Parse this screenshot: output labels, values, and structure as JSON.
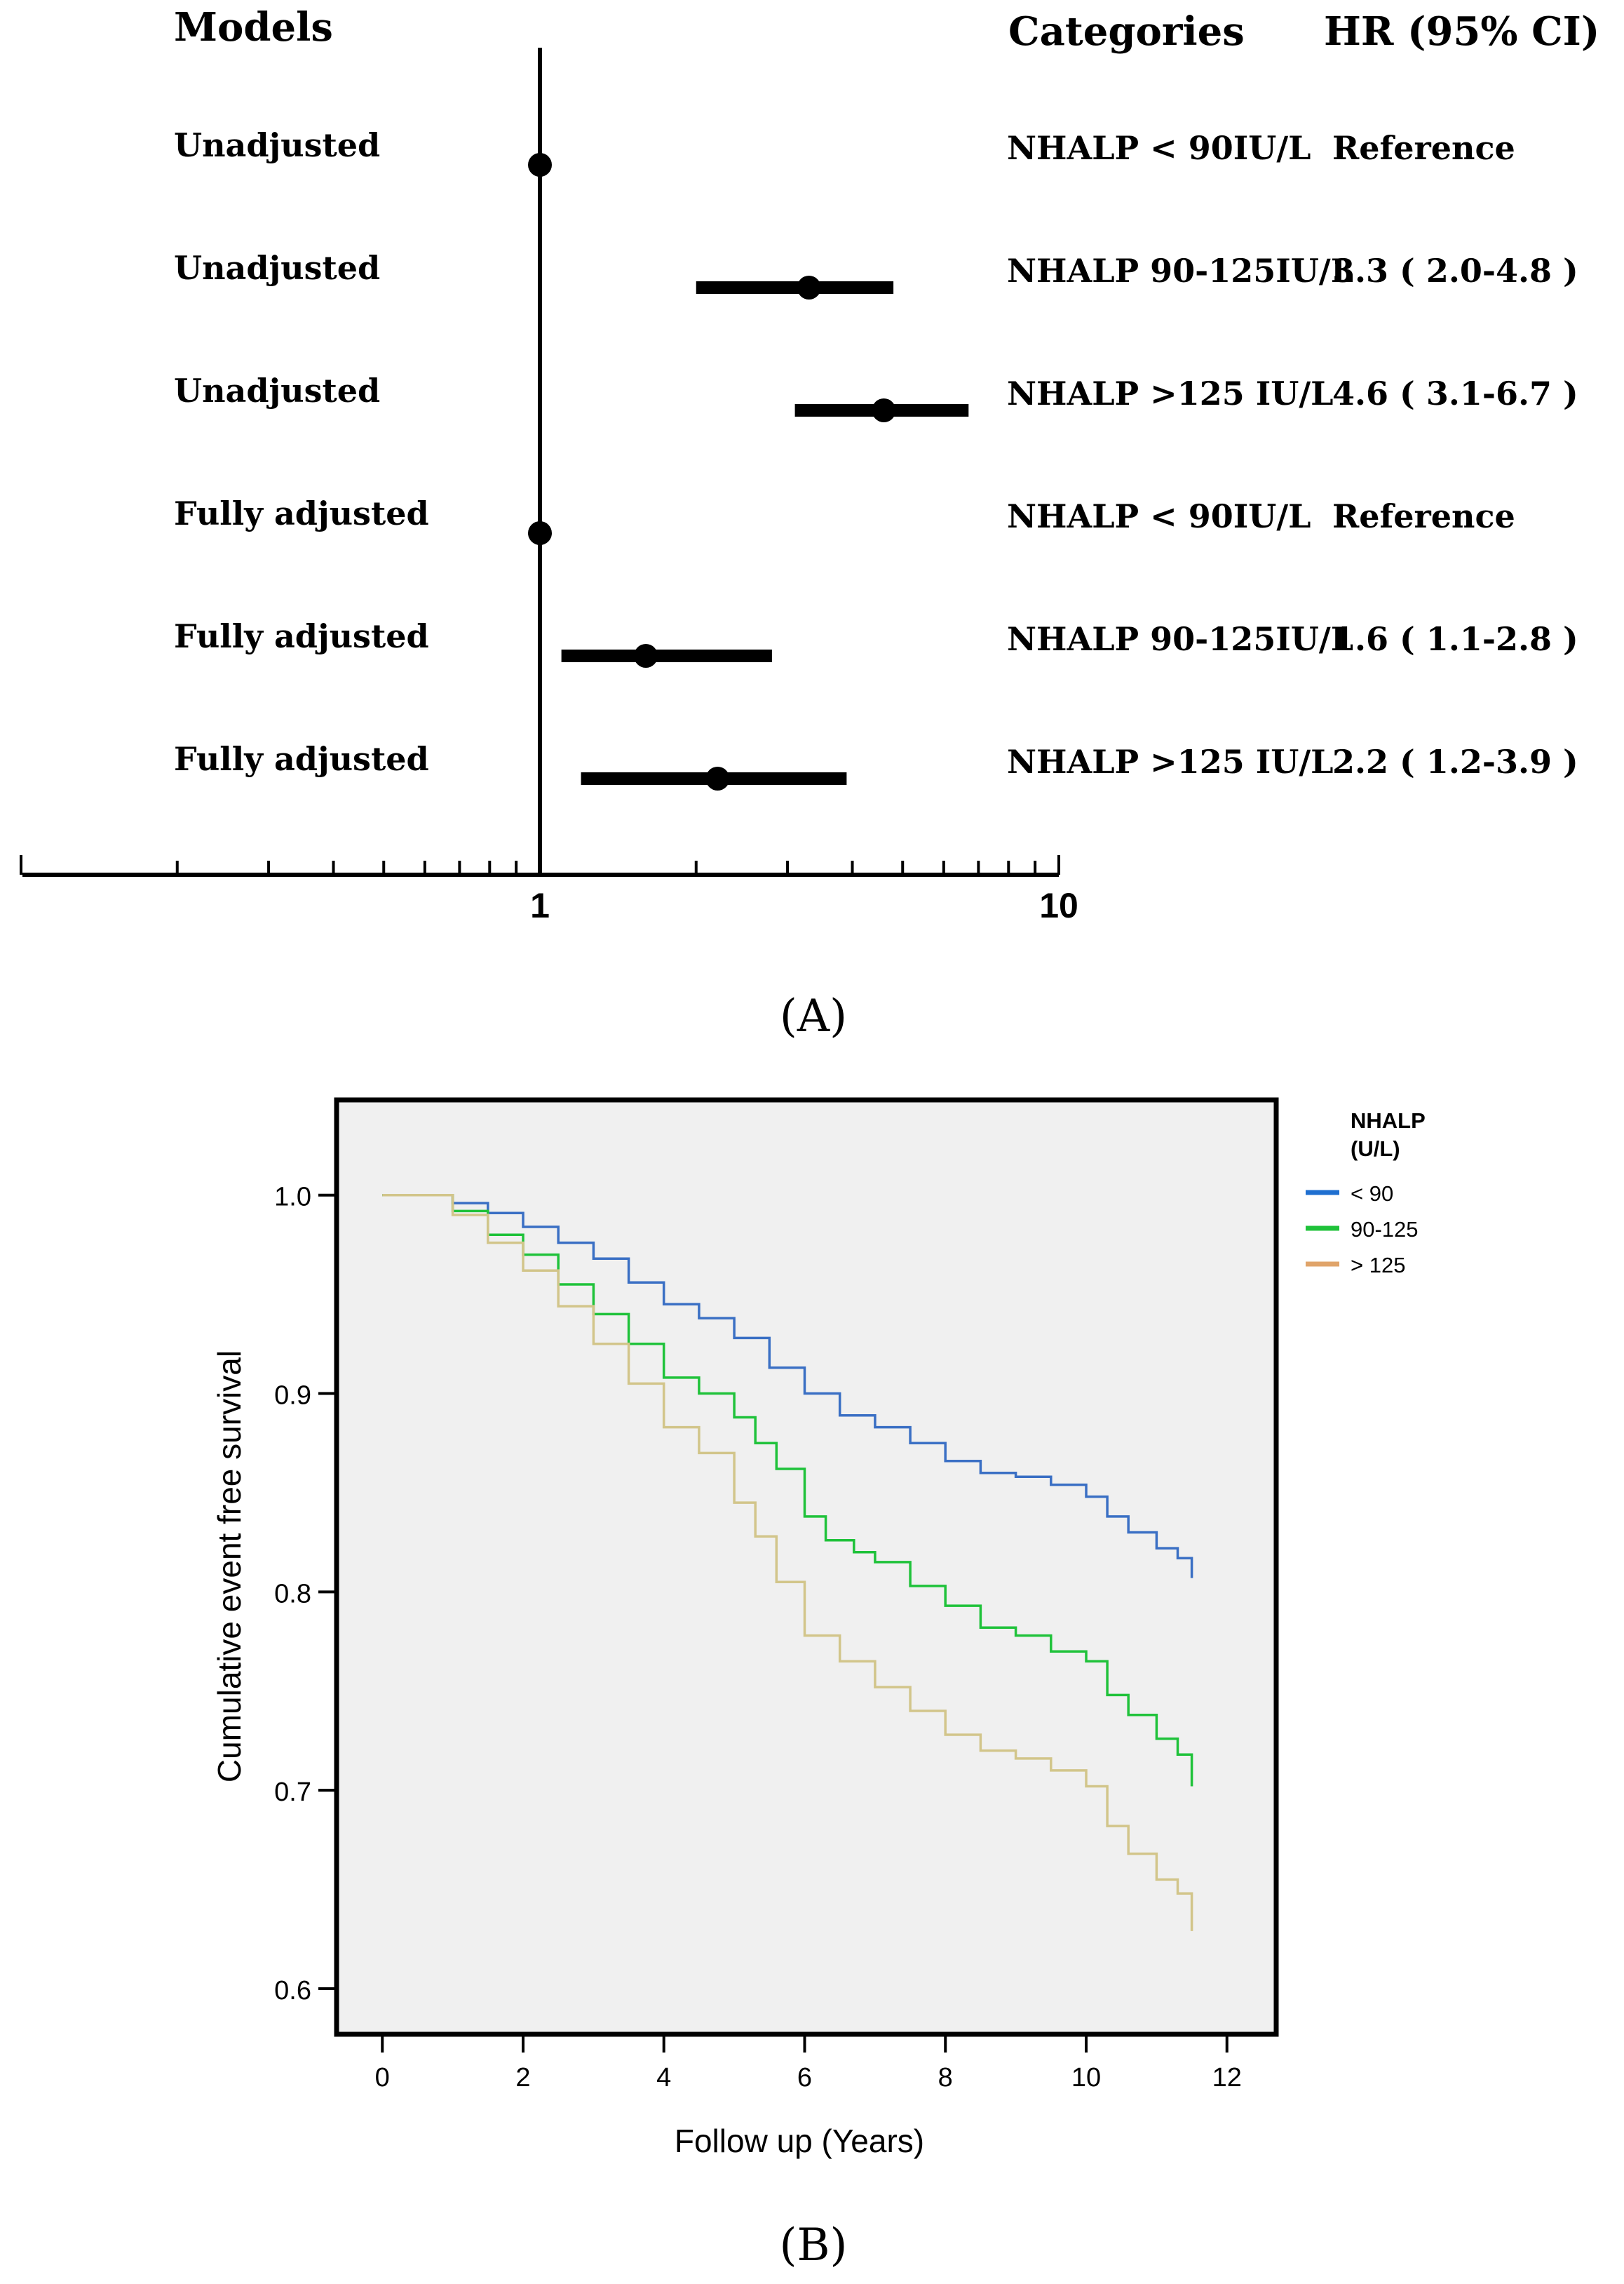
{
  "colors": {
    "black": "#000000",
    "panel_bg": "#f0f0f0",
    "lt90": "#3a6fc4",
    "mid": "#1fc23a",
    "gt125": "#d2c58a",
    "legend_gt125": "#e0a46a"
  },
  "chart_data": [
    {
      "panel": "A",
      "type": "forest",
      "panel_label": "(A)",
      "headers": {
        "models": "Models",
        "categories": "Categories",
        "hr": "HR (95% CI)"
      },
      "x_scale": "log",
      "xlim": [
        0.1,
        10
      ],
      "x_tick_labels": [
        "1",
        "10"
      ],
      "reference_line": 1,
      "rows": [
        {
          "model": "Unadjusted",
          "category": "NHALP < 90IU/L",
          "hr_text": "Reference",
          "hr": 1.0,
          "ci": null
        },
        {
          "model": "Unadjusted",
          "category": "NHALP 90-125IU/L",
          "hr_text": "3.3 ( 2.0-4.8 )",
          "hr": 3.3,
          "ci": [
            2.0,
            4.8
          ]
        },
        {
          "model": "Unadjusted",
          "category": "NHALP >125 IU/L",
          "hr_text": "4.6 ( 3.1-6.7 )",
          "hr": 4.6,
          "ci": [
            3.1,
            6.7
          ]
        },
        {
          "model": "Fully adjusted",
          "category": "NHALP < 90IU/L",
          "hr_text": "Reference",
          "hr": 1.0,
          "ci": null
        },
        {
          "model": "Fully adjusted",
          "category": "NHALP 90-125IU/L",
          "hr_text": "1.6 ( 1.1-2.8 )",
          "hr": 1.6,
          "ci": [
            1.1,
            2.8
          ]
        },
        {
          "model": "Fully adjusted",
          "category": "NHALP >125 IU/L",
          "hr_text": "2.2 ( 1.2-3.9 )",
          "hr": 2.2,
          "ci": [
            1.2,
            3.9
          ]
        }
      ]
    },
    {
      "panel": "B",
      "type": "line",
      "subtype": "kaplan-meier step",
      "panel_label": "(B)",
      "xlabel": "Follow up (Years)",
      "ylabel": "Cumulative event free survival",
      "xlim": [
        -0.65,
        12.7
      ],
      "ylim": [
        0.577,
        1.048
      ],
      "x_ticks": [
        0,
        2,
        4,
        6,
        8,
        10,
        12
      ],
      "x_tick_labels": [
        "0",
        "2",
        "4",
        "6",
        "8",
        "10",
        "12"
      ],
      "y_ticks": [
        0.6,
        0.7,
        0.8,
        0.9,
        1.0
      ],
      "y_tick_labels": [
        "0.6",
        "0.7",
        "0.8",
        "0.9",
        "1.0"
      ],
      "legend": {
        "title": "NHALP\n(U/L)",
        "placement": "outside-right",
        "entries": [
          "< 90",
          "90-125",
          "> 125"
        ]
      },
      "series": [
        {
          "name": "< 90",
          "color_key": "lt90",
          "points": [
            [
              0,
              1.0
            ],
            [
              0.6,
              1.0
            ],
            [
              1.0,
              0.996
            ],
            [
              1.5,
              0.991
            ],
            [
              2.0,
              0.984
            ],
            [
              2.5,
              0.976
            ],
            [
              3.0,
              0.968
            ],
            [
              3.5,
              0.956
            ],
            [
              4.0,
              0.945
            ],
            [
              4.5,
              0.938
            ],
            [
              5.0,
              0.928
            ],
            [
              5.5,
              0.913
            ],
            [
              6.0,
              0.9
            ],
            [
              6.5,
              0.889
            ],
            [
              7.0,
              0.883
            ],
            [
              7.5,
              0.875
            ],
            [
              8.0,
              0.866
            ],
            [
              8.5,
              0.86
            ],
            [
              9.0,
              0.858
            ],
            [
              9.5,
              0.854
            ],
            [
              10.0,
              0.848
            ],
            [
              10.3,
              0.838
            ],
            [
              10.6,
              0.83
            ],
            [
              11.0,
              0.822
            ],
            [
              11.3,
              0.817
            ],
            [
              11.5,
              0.807
            ]
          ]
        },
        {
          "name": "90-125",
          "color_key": "mid",
          "points": [
            [
              0,
              1.0
            ],
            [
              0.6,
              1.0
            ],
            [
              1.0,
              0.992
            ],
            [
              1.5,
              0.98
            ],
            [
              2.0,
              0.97
            ],
            [
              2.5,
              0.955
            ],
            [
              3.0,
              0.94
            ],
            [
              3.5,
              0.925
            ],
            [
              4.0,
              0.908
            ],
            [
              4.5,
              0.9
            ],
            [
              5.0,
              0.888
            ],
            [
              5.3,
              0.875
            ],
            [
              5.6,
              0.862
            ],
            [
              6.0,
              0.838
            ],
            [
              6.3,
              0.826
            ],
            [
              6.7,
              0.82
            ],
            [
              7.0,
              0.815
            ],
            [
              7.5,
              0.803
            ],
            [
              8.0,
              0.793
            ],
            [
              8.5,
              0.782
            ],
            [
              9.0,
              0.778
            ],
            [
              9.5,
              0.77
            ],
            [
              10.0,
              0.765
            ],
            [
              10.3,
              0.748
            ],
            [
              10.6,
              0.738
            ],
            [
              11.0,
              0.726
            ],
            [
              11.3,
              0.718
            ],
            [
              11.5,
              0.702
            ]
          ]
        },
        {
          "name": "> 125",
          "color_key": "gt125",
          "points": [
            [
              0,
              1.0
            ],
            [
              0.6,
              1.0
            ],
            [
              1.0,
              0.99
            ],
            [
              1.5,
              0.976
            ],
            [
              2.0,
              0.962
            ],
            [
              2.5,
              0.944
            ],
            [
              3.0,
              0.925
            ],
            [
              3.5,
              0.905
            ],
            [
              4.0,
              0.883
            ],
            [
              4.5,
              0.87
            ],
            [
              5.0,
              0.845
            ],
            [
              5.3,
              0.828
            ],
            [
              5.6,
              0.805
            ],
            [
              6.0,
              0.778
            ],
            [
              6.5,
              0.765
            ],
            [
              7.0,
              0.752
            ],
            [
              7.5,
              0.74
            ],
            [
              8.0,
              0.728
            ],
            [
              8.5,
              0.72
            ],
            [
              9.0,
              0.716
            ],
            [
              9.5,
              0.71
            ],
            [
              10.0,
              0.702
            ],
            [
              10.3,
              0.682
            ],
            [
              10.6,
              0.668
            ],
            [
              11.0,
              0.655
            ],
            [
              11.3,
              0.648
            ],
            [
              11.5,
              0.629
            ]
          ]
        }
      ]
    }
  ]
}
